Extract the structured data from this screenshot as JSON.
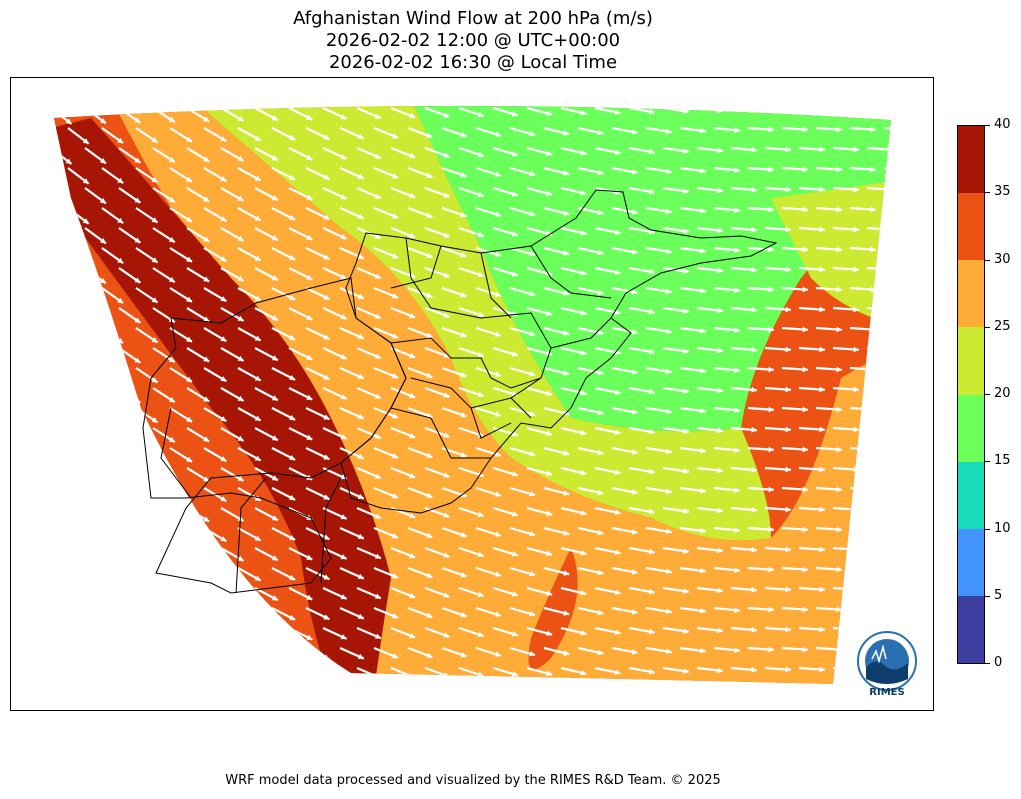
{
  "title": {
    "line1": "Afghanistan Wind Flow at 200 hPa (m/s)",
    "line2": "2026-02-02 12:00 @ UTC+00:00",
    "line3": "2026-02-02 16:30 @ Local Time"
  },
  "colorbar": {
    "ticks": [
      "0",
      "5",
      "10",
      "15",
      "20",
      "25",
      "30",
      "35",
      "40"
    ],
    "colors": [
      "#3d3fa0",
      "#4394ff",
      "#16dcbb",
      "#6aff5a",
      "#cdea33",
      "#ffab38",
      "#ec5213",
      "#a71605"
    ]
  },
  "logo": {
    "text": "RIMES",
    "icon": "rimes-logo-icon"
  },
  "footer": "WRF model data processed and visualized by the RIMES R&D Team. © 2025"
}
